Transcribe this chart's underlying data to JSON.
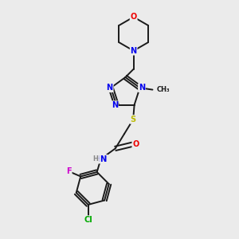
{
  "background_color": "#ebebeb",
  "bond_color": "#1a1a1a",
  "atom_colors": {
    "N": "#0000ee",
    "O": "#ee0000",
    "S": "#bbbb00",
    "F": "#cc00cc",
    "Cl": "#00aa00",
    "C": "#1a1a1a",
    "H": "#888888"
  },
  "figsize": [
    3.0,
    3.0
  ],
  "dpi": 100
}
